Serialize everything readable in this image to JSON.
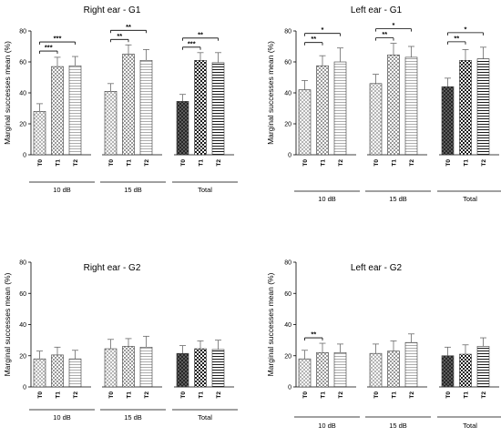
{
  "chart_data": [
    {
      "type": "bar",
      "title": "Right ear - G1",
      "ylabel": "Marginal successes mean (%)",
      "ylim": [
        0,
        80
      ],
      "yticks": [
        "0",
        "20",
        "40",
        "60",
        "80"
      ],
      "groups": [
        {
          "label": "10 dB",
          "categories": [
            "T0",
            "T1",
            "T2"
          ],
          "values": [
            28,
            57,
            57.5
          ],
          "errors": [
            5,
            6,
            6
          ],
          "significance": [
            {
              "from": 0,
              "to": 1,
              "text": "***",
              "level": 0
            },
            {
              "from": 0,
              "to": 2,
              "text": "***",
              "level": 1
            }
          ]
        },
        {
          "label": "15 dB",
          "categories": [
            "T0",
            "T1",
            "T2"
          ],
          "values": [
            41,
            65,
            61
          ],
          "errors": [
            5,
            6,
            7
          ],
          "significance": [
            {
              "from": 0,
              "to": 1,
              "text": "**",
              "level": 0
            },
            {
              "from": 0,
              "to": 2,
              "text": "**",
              "level": 1
            }
          ]
        },
        {
          "label": "Total",
          "categories": [
            "T0",
            "T1",
            "T2"
          ],
          "values": [
            34.5,
            61,
            59.5
          ],
          "errors": [
            4.5,
            5,
            6.5
          ],
          "significance": [
            {
              "from": 0,
              "to": 1,
              "text": "***",
              "level": 0
            },
            {
              "from": 0,
              "to": 2,
              "text": "**",
              "level": 1
            }
          ]
        }
      ]
    },
    {
      "type": "bar",
      "title": "Left ear - G1",
      "ylabel": "Marginal successes mean (%)",
      "ylim": [
        0,
        80
      ],
      "yticks": [
        "0",
        "20",
        "40",
        "60",
        "80"
      ],
      "groups": [
        {
          "label": "10 dB",
          "categories": [
            "T0",
            "T1",
            "T2"
          ],
          "values": [
            42,
            57.5,
            60
          ],
          "errors": [
            6,
            6.5,
            9
          ],
          "significance": [
            {
              "from": 0,
              "to": 1,
              "text": "**",
              "level": 0
            },
            {
              "from": 0,
              "to": 2,
              "text": "*",
              "level": 1
            }
          ]
        },
        {
          "label": "15 dB",
          "categories": [
            "T0",
            "T1",
            "T2"
          ],
          "values": [
            46,
            64.5,
            63
          ],
          "errors": [
            6,
            7.5,
            7
          ],
          "significance": [
            {
              "from": 0,
              "to": 1,
              "text": "**",
              "level": 0
            },
            {
              "from": 0,
              "to": 2,
              "text": "*",
              "level": 1
            }
          ]
        },
        {
          "label": "Total",
          "categories": [
            "T0",
            "T1",
            "T2"
          ],
          "values": [
            44,
            61,
            62
          ],
          "errors": [
            5.5,
            7,
            7.5
          ],
          "significance": [
            {
              "from": 0,
              "to": 1,
              "text": "**",
              "level": 0
            },
            {
              "from": 0,
              "to": 2,
              "text": "*",
              "level": 1
            }
          ]
        }
      ]
    },
    {
      "type": "bar",
      "title": "Right ear - G2",
      "ylabel": "Marginal successes mean (%)",
      "ylim": [
        0,
        80
      ],
      "yticks": [
        "0",
        "20",
        "40",
        "60",
        "80"
      ],
      "groups": [
        {
          "label": "10 dB",
          "categories": [
            "T0",
            "T1",
            "T2"
          ],
          "values": [
            18,
            20.5,
            18
          ],
          "errors": [
            5,
            5,
            5.5
          ],
          "significance": []
        },
        {
          "label": "15 dB",
          "categories": [
            "T0",
            "T1",
            "T2"
          ],
          "values": [
            24.5,
            26,
            25.5
          ],
          "errors": [
            6,
            5,
            7
          ],
          "significance": []
        },
        {
          "label": "Total",
          "categories": [
            "T0",
            "T1",
            "T2"
          ],
          "values": [
            21.5,
            24.5,
            24
          ],
          "errors": [
            5,
            5,
            6
          ],
          "significance": []
        }
      ]
    },
    {
      "type": "bar",
      "title": "Left ear - G2",
      "ylabel": "Marginal successes mean (%)",
      "ylim": [
        0,
        80
      ],
      "yticks": [
        "0",
        "20",
        "40",
        "60",
        "80"
      ],
      "groups": [
        {
          "label": "10 dB",
          "categories": [
            "T0",
            "T1",
            "T2"
          ],
          "values": [
            18,
            22,
            22
          ],
          "errors": [
            5.5,
            6,
            5.5
          ],
          "significance": [
            {
              "from": 0,
              "to": 1,
              "text": "**",
              "level": 0
            }
          ]
        },
        {
          "label": "15 dB",
          "categories": [
            "T0",
            "T1",
            "T2"
          ],
          "values": [
            21.5,
            23,
            28.5
          ],
          "errors": [
            6,
            6.5,
            5.5
          ],
          "significance": []
        },
        {
          "label": "Total",
          "categories": [
            "T0",
            "T1",
            "T2"
          ],
          "values": [
            20,
            21,
            26
          ],
          "errors": [
            5.5,
            6,
            5.5
          ],
          "significance": []
        }
      ]
    }
  ]
}
